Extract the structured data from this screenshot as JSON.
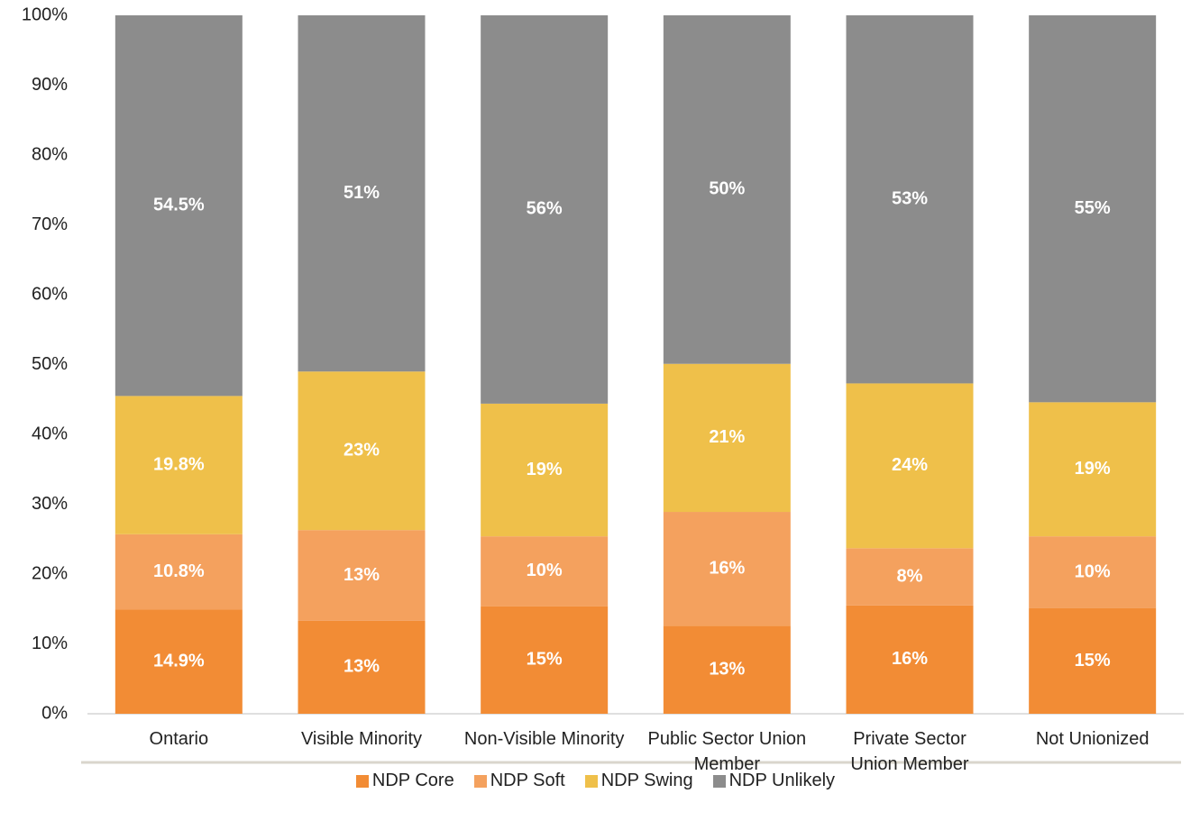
{
  "chart_data": {
    "type": "stacked_bar",
    "categories": [
      "Ontario",
      "Visible Minority",
      "Non-Visible Minority",
      "Public Sector Union Member",
      "Private Sector Union Member",
      "Not Unionized"
    ],
    "series": [
      {
        "name": "NDP Core",
        "color": "#f28c35",
        "values": [
          14.9,
          13.3,
          15.4,
          12.6,
          15.5,
          15.1
        ],
        "value_labels": [
          "14.9%",
          "13%",
          "15%",
          "13%",
          "16%",
          "15%"
        ]
      },
      {
        "name": "NDP Soft",
        "color": "#f4a15e",
        "values": [
          10.8,
          13.0,
          10.0,
          16.3,
          8.2,
          10.3
        ],
        "value_labels": [
          "10.8%",
          "13%",
          "10%",
          "16%",
          "8%",
          "10%"
        ]
      },
      {
        "name": "NDP Swing",
        "color": "#efc04a",
        "values": [
          19.8,
          22.7,
          19.0,
          21.2,
          23.6,
          19.2
        ],
        "value_labels": [
          "19.8%",
          "23%",
          "19%",
          "21%",
          "24%",
          "19%"
        ]
      },
      {
        "name": "NDP Unlikely",
        "color": "#8c8c8c",
        "values": [
          54.5,
          51.0,
          55.6,
          49.9,
          52.7,
          55.4
        ],
        "value_labels": [
          "54.5%",
          "51%",
          "56%",
          "50%",
          "53%",
          "55%"
        ]
      }
    ],
    "ylim": [
      0,
      100
    ],
    "yticks": [
      {
        "value": 0,
        "label": "0%"
      },
      {
        "value": 10,
        "label": "10%"
      },
      {
        "value": 20,
        "label": "20%"
      },
      {
        "value": 30,
        "label": "30%"
      },
      {
        "value": 40,
        "label": "40%"
      },
      {
        "value": 50,
        "label": "50%"
      },
      {
        "value": 60,
        "label": "60%"
      },
      {
        "value": 70,
        "label": "70%"
      },
      {
        "value": 80,
        "label": "80%"
      },
      {
        "value": 90,
        "label": "90%"
      },
      {
        "value": 100,
        "label": "100%"
      }
    ],
    "legend": "bottom"
  }
}
